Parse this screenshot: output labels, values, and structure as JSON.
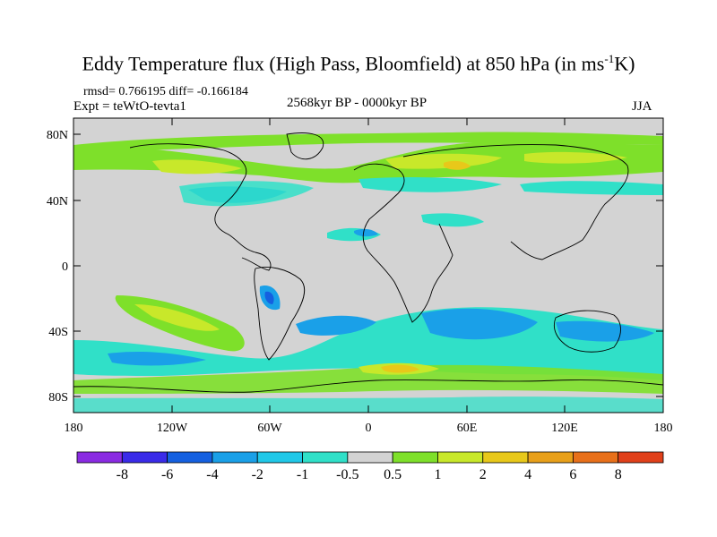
{
  "title_main": "Eddy Temperature flux (High Pass, Bloomfield) at 850 hPa (in ms",
  "title_sup": "-1",
  "title_end": "K)",
  "stats": "rmsd= 0.766195 diff= -0.166184",
  "expt": "Expt = teWtO-tevta1",
  "period": "2568kyr BP - 0000kyr BP",
  "season": "JJA",
  "lat_ticks": [
    "80N",
    "40N",
    "0",
    "40S",
    "80S"
  ],
  "lon_ticks": [
    "180",
    "120W",
    "60W",
    "0",
    "60E",
    "120E",
    "180"
  ],
  "colorbar": {
    "labels": [
      "-8",
      "-6",
      "-4",
      "-2",
      "-1",
      "-0.5",
      "0.5",
      "1",
      "2",
      "4",
      "6",
      "8"
    ],
    "colors": [
      "#8a2be2",
      "#3a2be8",
      "#1560e0",
      "#1aa0e8",
      "#20c8e8",
      "#30e0c8",
      "#d3d3d3",
      "#7ee02a",
      "#c8e82a",
      "#e8c81a",
      "#e8a01a",
      "#e8701a",
      "#e0401a"
    ]
  },
  "colors": {
    "ocean_land_gray": "#d3d3d3",
    "coast": "#000000"
  }
}
